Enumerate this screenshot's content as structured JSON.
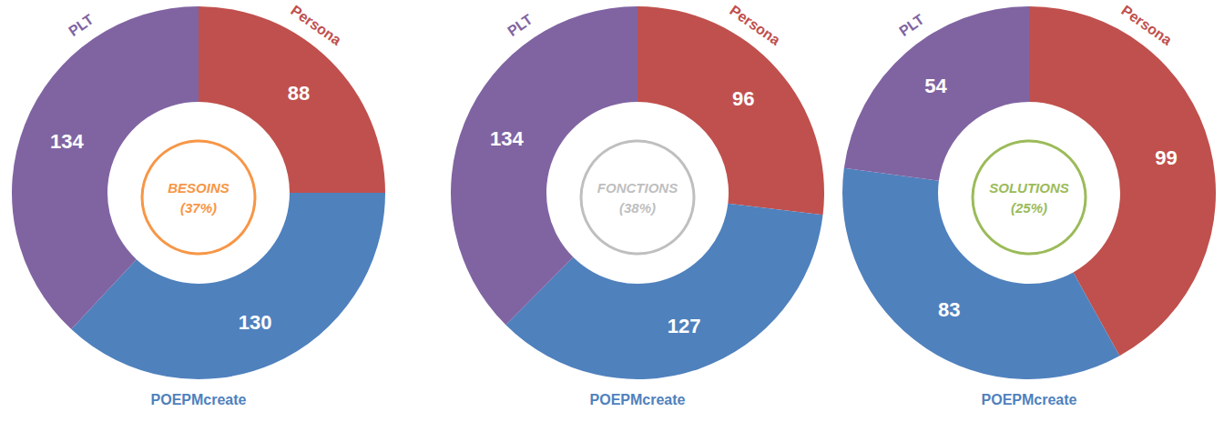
{
  "chart_data": [
    {
      "type": "pie",
      "title": "BESOINS",
      "subtitle": "(37%)",
      "color": "#f79646",
      "categories": [
        "Persona",
        "POEPMcreate",
        "PLT"
      ],
      "values": [
        88,
        130,
        134
      ],
      "colors": [
        "#c0504d",
        "#4f81bd",
        "#8064a2"
      ],
      "data_labels": true
    },
    {
      "type": "pie",
      "title": "FONCTIONS",
      "subtitle": "(38%)",
      "color": "#bfbfbf",
      "categories": [
        "Persona",
        "POEPMcreate",
        "PLT"
      ],
      "values": [
        96,
        127,
        134
      ],
      "colors": [
        "#c0504d",
        "#4f81bd",
        "#8064a2"
      ],
      "data_labels": true
    },
    {
      "type": "pie",
      "title": "SOLUTIONS",
      "subtitle": "(25%)",
      "color": "#9bbb59",
      "categories": [
        "Persona",
        "POEPMcreate",
        "PLT"
      ],
      "values": [
        99,
        83,
        54
      ],
      "colors": [
        "#c0504d",
        "#4f81bd",
        "#8064a2"
      ],
      "data_labels": true
    }
  ]
}
